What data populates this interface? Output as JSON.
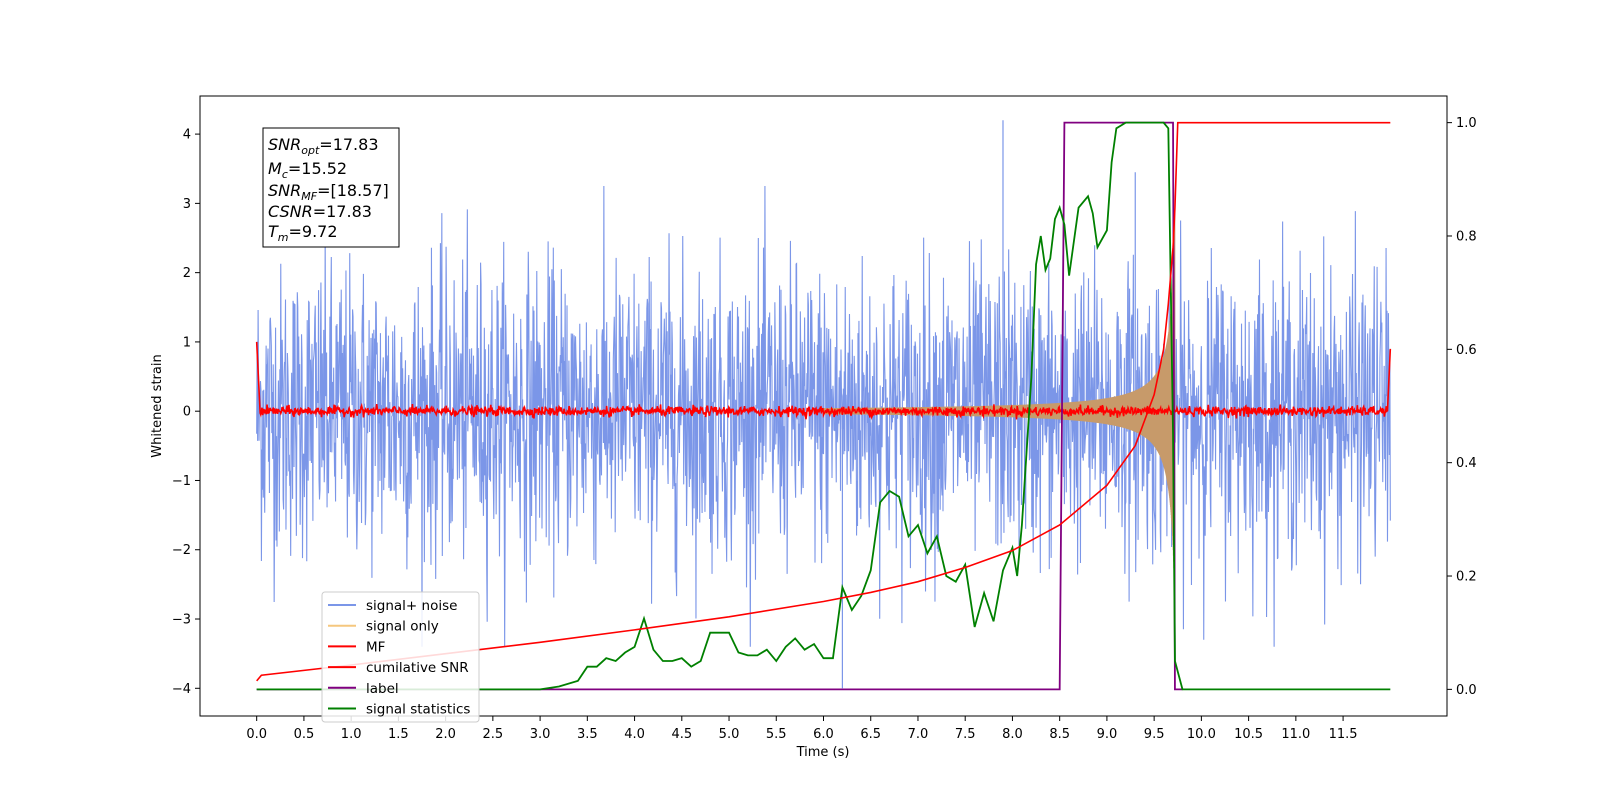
{
  "chart_data": {
    "type": "line",
    "xlabel": "Time (s)",
    "ylabel": "Whitened strain",
    "xlim": [
      -0.6,
      12.6
    ],
    "ylim": [
      -4.4,
      4.55
    ],
    "y2lim": [
      -0.047,
      1.047
    ],
    "x_ticks": [
      "0.0",
      "0.5",
      "1.0",
      "1.5",
      "2.0",
      "2.5",
      "3.0",
      "3.5",
      "4.0",
      "4.5",
      "5.0",
      "5.5",
      "6.0",
      "6.5",
      "7.0",
      "7.5",
      "8.0",
      "8.5",
      "9.0",
      "9.5",
      "10.0",
      "10.5",
      "11.0",
      "11.5"
    ],
    "y_ticks": [
      "−4",
      "−3",
      "−2",
      "−1",
      "0",
      "1",
      "2",
      "3",
      "4"
    ],
    "y2_ticks": [
      "0.0",
      "0.2",
      "0.4",
      "0.6",
      "0.8",
      "1.0"
    ],
    "grid": false,
    "legend_position": "lower-left",
    "info_box": {
      "snr_opt": {
        "base": "SNR",
        "sub": "opt",
        "value": "=17.83"
      },
      "mc": {
        "base": "M",
        "sub": "c",
        "value": "=15.52"
      },
      "snr_mf": {
        "base": "SNR",
        "sub": "MF",
        "value": "=[18.57]"
      },
      "csnr": {
        "base": "CSNR",
        "sub": "",
        "value": "=17.83"
      },
      "tm": {
        "base": "T",
        "sub": "m",
        "value": "=9.72"
      }
    },
    "series": [
      {
        "name": "signal+ noise",
        "color": "#7b96e8",
        "axis": "left",
        "description": "noisy whitened strain, approx. gaussian with std ~1, range about -4 to 4.2 over 0 to 12 s",
        "spikes": [
          [
            6.2,
            -4.0
          ],
          [
            7.9,
            4.2
          ],
          [
            9.3,
            3.45
          ],
          [
            9.72,
            -3.6
          ]
        ]
      },
      {
        "name": "signal only",
        "color": "#f5c77e",
        "axis": "left",
        "envelope": {
          "t_merge": 9.72,
          "peak_amplitude": 3.0
        }
      },
      {
        "name": "MF",
        "color": "#ff0000",
        "axis": "left",
        "start": [
          0.0,
          1.0
        ],
        "end": [
          12.0,
          0.9
        ],
        "baseline": 0.0
      },
      {
        "name": "cumilative SNR",
        "color": "#ff0000",
        "axis": "right",
        "points": [
          [
            0.0,
            0.015
          ],
          [
            0.05,
            0.025
          ],
          [
            1.0,
            0.043
          ],
          [
            2.0,
            0.063
          ],
          [
            3.0,
            0.083
          ],
          [
            4.0,
            0.105
          ],
          [
            5.0,
            0.128
          ],
          [
            6.0,
            0.155
          ],
          [
            6.5,
            0.171
          ],
          [
            7.0,
            0.19
          ],
          [
            7.5,
            0.215
          ],
          [
            8.0,
            0.245
          ],
          [
            8.5,
            0.29
          ],
          [
            9.0,
            0.36
          ],
          [
            9.3,
            0.43
          ],
          [
            9.5,
            0.52
          ],
          [
            9.6,
            0.6
          ],
          [
            9.65,
            0.68
          ],
          [
            9.7,
            0.78
          ],
          [
            9.72,
            0.85
          ],
          [
            9.75,
            1.0
          ],
          [
            12.0,
            1.0
          ]
        ]
      },
      {
        "name": "label",
        "color": "#800080",
        "axis": "right",
        "points": [
          [
            0.0,
            0.0
          ],
          [
            8.5,
            0.0
          ],
          [
            8.55,
            1.0
          ],
          [
            9.7,
            1.0
          ],
          [
            9.72,
            0.0
          ],
          [
            9.8,
            0.0
          ]
        ]
      },
      {
        "name": "signal statistics",
        "color": "#008000",
        "axis": "right",
        "points": [
          [
            0.0,
            0.0
          ],
          [
            0.5,
            0.0
          ],
          [
            1.0,
            0.0
          ],
          [
            1.5,
            0.0
          ],
          [
            2.0,
            0.0
          ],
          [
            2.5,
            0.0
          ],
          [
            3.0,
            0.0
          ],
          [
            3.2,
            0.005
          ],
          [
            3.4,
            0.015
          ],
          [
            3.5,
            0.04
          ],
          [
            3.6,
            0.04
          ],
          [
            3.7,
            0.055
          ],
          [
            3.8,
            0.05
          ],
          [
            3.9,
            0.065
          ],
          [
            4.0,
            0.075
          ],
          [
            4.1,
            0.125
          ],
          [
            4.2,
            0.07
          ],
          [
            4.3,
            0.05
          ],
          [
            4.4,
            0.05
          ],
          [
            4.5,
            0.055
          ],
          [
            4.6,
            0.04
          ],
          [
            4.7,
            0.05
          ],
          [
            4.8,
            0.1
          ],
          [
            4.9,
            0.1
          ],
          [
            5.0,
            0.1
          ],
          [
            5.1,
            0.065
          ],
          [
            5.2,
            0.06
          ],
          [
            5.3,
            0.06
          ],
          [
            5.4,
            0.07
          ],
          [
            5.5,
            0.05
          ],
          [
            5.6,
            0.075
          ],
          [
            5.7,
            0.09
          ],
          [
            5.8,
            0.07
          ],
          [
            5.9,
            0.08
          ],
          [
            6.0,
            0.055
          ],
          [
            6.1,
            0.055
          ],
          [
            6.2,
            0.18
          ],
          [
            6.3,
            0.14
          ],
          [
            6.4,
            0.165
          ],
          [
            6.5,
            0.21
          ],
          [
            6.6,
            0.33
          ],
          [
            6.7,
            0.35
          ],
          [
            6.8,
            0.34
          ],
          [
            6.9,
            0.27
          ],
          [
            7.0,
            0.29
          ],
          [
            7.1,
            0.24
          ],
          [
            7.2,
            0.27
          ],
          [
            7.3,
            0.2
          ],
          [
            7.4,
            0.19
          ],
          [
            7.5,
            0.22
          ],
          [
            7.6,
            0.11
          ],
          [
            7.7,
            0.17
          ],
          [
            7.8,
            0.12
          ],
          [
            7.9,
            0.21
          ],
          [
            8.0,
            0.25
          ],
          [
            8.05,
            0.2
          ],
          [
            8.1,
            0.29
          ],
          [
            8.2,
            0.55
          ],
          [
            8.25,
            0.75
          ],
          [
            8.3,
            0.8
          ],
          [
            8.35,
            0.74
          ],
          [
            8.4,
            0.76
          ],
          [
            8.45,
            0.83
          ],
          [
            8.5,
            0.85
          ],
          [
            8.55,
            0.82
          ],
          [
            8.6,
            0.73
          ],
          [
            8.7,
            0.85
          ],
          [
            8.8,
            0.87
          ],
          [
            8.85,
            0.84
          ],
          [
            8.9,
            0.78
          ],
          [
            9.0,
            0.81
          ],
          [
            9.05,
            0.93
          ],
          [
            9.1,
            0.99
          ],
          [
            9.2,
            1.0
          ],
          [
            9.3,
            1.0
          ],
          [
            9.4,
            1.0
          ],
          [
            9.5,
            1.0
          ],
          [
            9.6,
            1.0
          ],
          [
            9.65,
            0.99
          ],
          [
            9.7,
            0.45
          ],
          [
            9.72,
            0.05
          ],
          [
            9.8,
            0.0
          ],
          [
            10.0,
            0.0
          ],
          [
            10.5,
            0.0
          ],
          [
            11.0,
            0.0
          ],
          [
            11.5,
            0.0
          ],
          [
            12.0,
            0.0
          ]
        ]
      }
    ]
  }
}
